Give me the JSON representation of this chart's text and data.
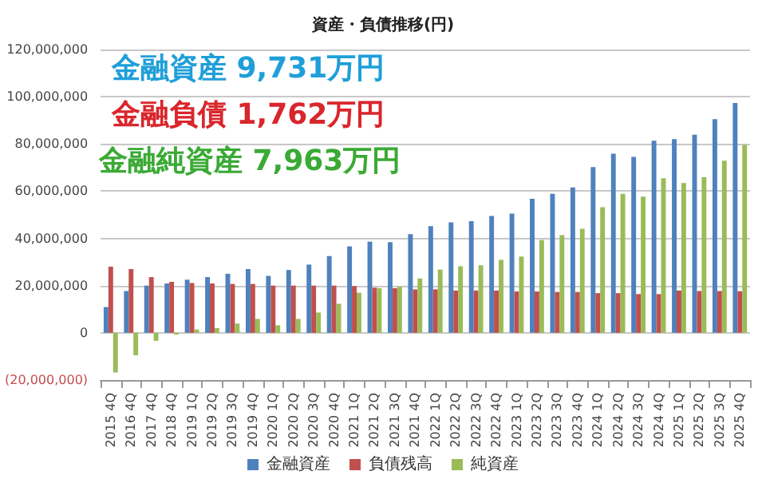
{
  "chart_data": {
    "type": "bar",
    "title": "資産・負債推移(円)",
    "categories": [
      "2015 4Q",
      "2016 4Q",
      "2017 4Q",
      "2018 4Q",
      "2019 1Q",
      "2019 2Q",
      "2019 3Q",
      "2019 4Q",
      "2020 1Q",
      "2020 2Q",
      "2020 3Q",
      "2020 4Q",
      "2021 1Q",
      "2021 2Q",
      "2021 3Q",
      "2021 4Q",
      "2022 1Q",
      "2022 2Q",
      "2022 3Q",
      "2022 4Q",
      "2023 1Q",
      "2023 2Q",
      "2023 3Q",
      "2023 4Q",
      "2024 1Q",
      "2024 2Q",
      "2024 3Q",
      "2024 4Q",
      "2025 1Q",
      "2025 2Q",
      "2025 3Q",
      "2025 4Q"
    ],
    "series": [
      {
        "name": "金融資産",
        "color": "#4f81bd",
        "values": [
          10900000,
          17700000,
          20000000,
          20900000,
          22500000,
          23600000,
          25000000,
          27000000,
          24100000,
          26600000,
          28900000,
          32500000,
          36600000,
          38600000,
          38400000,
          41800000,
          45200000,
          46800000,
          47300000,
          49500000,
          50500000,
          56800000,
          58900000,
          61600000,
          70200000,
          75900000,
          74500000,
          81400000,
          82000000,
          83900000,
          90500000,
          97310000
        ]
      },
      {
        "name": "負債残高",
        "color": "#c0504d",
        "values": [
          28000000,
          27000000,
          23600000,
          21600000,
          21100000,
          20900000,
          20700000,
          20700000,
          20000000,
          20000000,
          20000000,
          20000000,
          19800000,
          19100000,
          18900000,
          18400000,
          18400000,
          17900000,
          17900000,
          17900000,
          17500000,
          17500000,
          17300000,
          17300000,
          16800000,
          16800000,
          16400000,
          16400000,
          17900000,
          17700000,
          17700000,
          17620000
        ]
      },
      {
        "name": "純資産",
        "color": "#9bbb59",
        "values": [
          -16800000,
          -9500000,
          -3400000,
          -700000,
          1400000,
          2000000,
          3900000,
          5900000,
          3200000,
          5900000,
          8600000,
          12300000,
          17000000,
          18900000,
          19500000,
          23000000,
          26800000,
          28200000,
          28600000,
          30900000,
          32300000,
          39300000,
          41400000,
          44100000,
          53200000,
          58900000,
          57700000,
          65500000,
          63400000,
          65900000,
          72900000,
          79630000
        ]
      }
    ],
    "ylim": [
      -20000000,
      120000000
    ],
    "yticks": [
      {
        "value": -20000000,
        "label": "(20,000,000)"
      },
      {
        "value": 0,
        "label": "0"
      },
      {
        "value": 20000000,
        "label": "20,000,000"
      },
      {
        "value": 40000000,
        "label": "40,000,000"
      },
      {
        "value": 60000000,
        "label": "60,000,000"
      },
      {
        "value": 80000000,
        "label": "80,000,000"
      },
      {
        "value": 100000000,
        "label": "100,000,000"
      },
      {
        "value": 120000000,
        "label": "120,000,000"
      }
    ],
    "grid": "y",
    "legend": "bottom",
    "annotations": [
      "金融資産 9,731万円",
      "金融負債 1,762万円",
      "金融純資産 7,963万円"
    ]
  }
}
